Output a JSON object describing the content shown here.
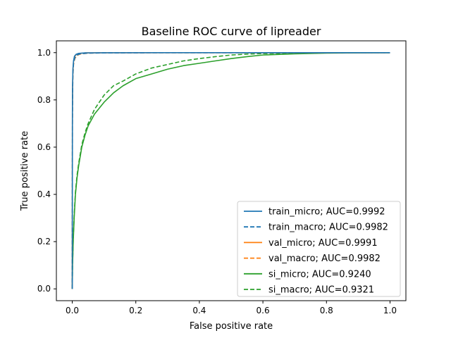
{
  "chart_data": {
    "type": "line",
    "title": "Baseline ROC curve of lipreader",
    "xlabel": "False positive rate",
    "ylabel": "True positive rate",
    "xlim": [
      -0.05,
      1.05
    ],
    "ylim": [
      -0.05,
      1.05
    ],
    "xticks": [
      0.0,
      0.2,
      0.4,
      0.6,
      0.8,
      1.0
    ],
    "yticks": [
      0.0,
      0.2,
      0.4,
      0.6,
      0.8,
      1.0
    ],
    "xtick_labels": [
      "0.0",
      "0.2",
      "0.4",
      "0.6",
      "0.8",
      "1.0"
    ],
    "ytick_labels": [
      "0.0",
      "0.2",
      "0.4",
      "0.6",
      "0.8",
      "1.0"
    ],
    "grid": false,
    "legend_position": "lower-right",
    "series": [
      {
        "name": "train_micro; AUC=0.9992",
        "color": "#1f77b4",
        "dash": "solid",
        "x": [
          0,
          0.0005,
          0.001,
          0.002,
          0.004,
          0.007,
          0.012,
          0.02,
          0.04,
          0.1,
          0.3,
          1.0
        ],
        "y": [
          0,
          0.75,
          0.86,
          0.93,
          0.965,
          0.985,
          0.993,
          0.997,
          0.999,
          0.9995,
          1.0,
          1.0
        ]
      },
      {
        "name": "train_macro; AUC=0.9982",
        "color": "#1f77b4",
        "dash": "dashed",
        "x": [
          0,
          0.0005,
          0.001,
          0.002,
          0.004,
          0.008,
          0.015,
          0.025,
          0.05,
          0.1,
          0.3,
          1.0
        ],
        "y": [
          0,
          0.7,
          0.83,
          0.91,
          0.955,
          0.978,
          0.99,
          0.995,
          0.998,
          0.999,
          1.0,
          1.0
        ]
      },
      {
        "name": "val_micro; AUC=0.9991",
        "color": "#ff7f0e",
        "dash": "solid",
        "x": [
          0,
          0.0005,
          0.001,
          0.002,
          0.004,
          0.007,
          0.012,
          0.02,
          0.04,
          0.1,
          0.3,
          1.0
        ],
        "y": [
          0,
          0.74,
          0.85,
          0.92,
          0.962,
          0.983,
          0.992,
          0.996,
          0.999,
          0.9995,
          1.0,
          1.0
        ]
      },
      {
        "name": "val_macro; AUC=0.9982",
        "color": "#ff7f0e",
        "dash": "dashed",
        "x": [
          0,
          0.0005,
          0.001,
          0.002,
          0.004,
          0.008,
          0.015,
          0.025,
          0.05,
          0.1,
          0.3,
          1.0
        ],
        "y": [
          0,
          0.69,
          0.82,
          0.9,
          0.95,
          0.975,
          0.988,
          0.994,
          0.998,
          0.999,
          1.0,
          1.0
        ]
      },
      {
        "name": "si_micro; AUC=0.9240",
        "color": "#2ca02c",
        "dash": "solid",
        "x": [
          0,
          0.001,
          0.003,
          0.006,
          0.01,
          0.015,
          0.02,
          0.03,
          0.04,
          0.05,
          0.07,
          0.1,
          0.13,
          0.16,
          0.2,
          0.25,
          0.3,
          0.35,
          0.4,
          0.45,
          0.5,
          0.55,
          0.6,
          0.7,
          0.8,
          0.9,
          1.0
        ],
        "y": [
          0,
          0.1,
          0.2,
          0.3,
          0.4,
          0.47,
          0.52,
          0.6,
          0.65,
          0.69,
          0.74,
          0.79,
          0.83,
          0.86,
          0.89,
          0.91,
          0.93,
          0.945,
          0.955,
          0.965,
          0.975,
          0.983,
          0.99,
          0.995,
          0.998,
          0.999,
          1.0
        ]
      },
      {
        "name": "si_macro; AUC=0.9321",
        "color": "#2ca02c",
        "dash": "dashed",
        "x": [
          0,
          0.001,
          0.003,
          0.006,
          0.01,
          0.015,
          0.02,
          0.03,
          0.04,
          0.05,
          0.07,
          0.1,
          0.13,
          0.16,
          0.2,
          0.25,
          0.3,
          0.35,
          0.4,
          0.45,
          0.5,
          0.55,
          0.6,
          0.7,
          0.8,
          0.9,
          1.0
        ],
        "y": [
          0,
          0.11,
          0.21,
          0.31,
          0.41,
          0.48,
          0.53,
          0.61,
          0.66,
          0.7,
          0.76,
          0.82,
          0.86,
          0.88,
          0.91,
          0.935,
          0.95,
          0.965,
          0.975,
          0.983,
          0.99,
          0.994,
          0.996,
          0.998,
          0.999,
          1.0,
          1.0
        ]
      }
    ]
  }
}
